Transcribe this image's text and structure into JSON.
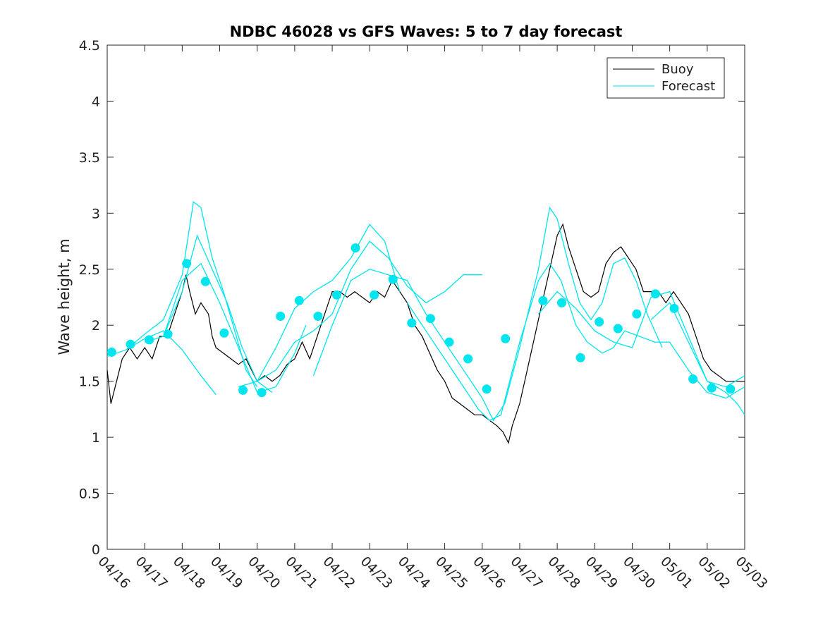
{
  "chart_data": {
    "type": "line",
    "title": "NDBC 46028 vs GFS Waves: 5 to 7 day forecast",
    "xlabel": "",
    "ylabel": "Wave height, m",
    "xlim": [
      "04/16",
      "05/03"
    ],
    "ylim": [
      0,
      4.5
    ],
    "x_ticks": [
      "04/16",
      "04/17",
      "04/18",
      "04/19",
      "04/20",
      "04/21",
      "04/22",
      "04/23",
      "04/24",
      "04/25",
      "04/26",
      "04/27",
      "04/28",
      "04/29",
      "04/30",
      "05/01",
      "05/02",
      "05/03"
    ],
    "y_ticks": [
      "0",
      "0.5",
      "1",
      "1.5",
      "2",
      "2.5",
      "3",
      "3.5",
      "4",
      "4.5"
    ],
    "grid": false,
    "legend_position": "top-right",
    "colors": {
      "buoy": "#000000",
      "forecast": "#00e5ee"
    },
    "series": [
      {
        "name": "Buoy",
        "type": "line",
        "points": [
          [
            0,
            1.6
          ],
          [
            0.1,
            1.3
          ],
          [
            0.25,
            1.5
          ],
          [
            0.4,
            1.7
          ],
          [
            0.6,
            1.8
          ],
          [
            0.8,
            1.7
          ],
          [
            1.0,
            1.8
          ],
          [
            1.2,
            1.7
          ],
          [
            1.4,
            1.9
          ],
          [
            1.6,
            1.9
          ],
          [
            1.8,
            2.1
          ],
          [
            2.0,
            2.3
          ],
          [
            2.1,
            2.45
          ],
          [
            2.2,
            2.3
          ],
          [
            2.35,
            2.1
          ],
          [
            2.5,
            2.2
          ],
          [
            2.7,
            2.1
          ],
          [
            2.8,
            1.9
          ],
          [
            2.9,
            1.8
          ],
          [
            3.1,
            1.75
          ],
          [
            3.3,
            1.7
          ],
          [
            3.5,
            1.65
          ],
          [
            3.7,
            1.7
          ],
          [
            3.85,
            1.6
          ],
          [
            4.0,
            1.5
          ],
          [
            4.2,
            1.55
          ],
          [
            4.4,
            1.5
          ],
          [
            4.6,
            1.55
          ],
          [
            4.8,
            1.65
          ],
          [
            5.0,
            1.7
          ],
          [
            5.2,
            1.85
          ],
          [
            5.4,
            1.7
          ],
          [
            5.6,
            1.9
          ],
          [
            5.8,
            2.1
          ],
          [
            6.0,
            2.3
          ],
          [
            6.2,
            2.3
          ],
          [
            6.4,
            2.25
          ],
          [
            6.6,
            2.3
          ],
          [
            6.8,
            2.25
          ],
          [
            7.0,
            2.2
          ],
          [
            7.2,
            2.3
          ],
          [
            7.4,
            2.25
          ],
          [
            7.6,
            2.4
          ],
          [
            7.8,
            2.3
          ],
          [
            8.0,
            2.2
          ],
          [
            8.2,
            2.0
          ],
          [
            8.4,
            1.9
          ],
          [
            8.6,
            1.75
          ],
          [
            8.8,
            1.6
          ],
          [
            9.0,
            1.5
          ],
          [
            9.2,
            1.35
          ],
          [
            9.4,
            1.3
          ],
          [
            9.6,
            1.25
          ],
          [
            9.8,
            1.2
          ],
          [
            10.0,
            1.2
          ],
          [
            10.2,
            1.15
          ],
          [
            10.4,
            1.1
          ],
          [
            10.55,
            1.05
          ],
          [
            10.7,
            0.95
          ],
          [
            10.8,
            1.1
          ],
          [
            11.0,
            1.3
          ],
          [
            11.2,
            1.6
          ],
          [
            11.4,
            1.9
          ],
          [
            11.6,
            2.2
          ],
          [
            11.8,
            2.5
          ],
          [
            12.0,
            2.8
          ],
          [
            12.15,
            2.9
          ],
          [
            12.3,
            2.7
          ],
          [
            12.5,
            2.5
          ],
          [
            12.7,
            2.3
          ],
          [
            12.9,
            2.25
          ],
          [
            13.1,
            2.3
          ],
          [
            13.3,
            2.55
          ],
          [
            13.5,
            2.65
          ],
          [
            13.7,
            2.7
          ],
          [
            13.9,
            2.6
          ],
          [
            14.1,
            2.5
          ],
          [
            14.3,
            2.3
          ],
          [
            14.5,
            2.3
          ],
          [
            14.7,
            2.3
          ],
          [
            14.9,
            2.2
          ],
          [
            15.1,
            2.3
          ],
          [
            15.3,
            2.2
          ],
          [
            15.5,
            2.1
          ],
          [
            15.7,
            1.9
          ],
          [
            15.9,
            1.7
          ],
          [
            16.1,
            1.6
          ],
          [
            16.3,
            1.55
          ],
          [
            16.5,
            1.5
          ],
          [
            16.7,
            1.5
          ],
          [
            16.9,
            1.5
          ],
          [
            17.0,
            1.5
          ]
        ]
      },
      {
        "name": "Forecast",
        "type": "line",
        "lines": [
          [
            [
              0,
              1.72
            ],
            [
              0.5,
              1.78
            ],
            [
              1.0,
              1.88
            ],
            [
              1.5,
              1.95
            ],
            [
              2.0,
              1.78
            ],
            [
              2.5,
              1.55
            ],
            [
              2.9,
              1.38
            ]
          ],
          [
            [
              0.5,
              1.78
            ],
            [
              1.0,
              1.92
            ],
            [
              1.5,
              2.05
            ],
            [
              2.0,
              2.45
            ],
            [
              2.3,
              3.1
            ],
            [
              2.5,
              3.05
            ],
            [
              2.8,
              2.6
            ],
            [
              3.1,
              2.3
            ],
            [
              3.4,
              1.95
            ],
            [
              3.7,
              1.6
            ],
            [
              4.0,
              1.45
            ]
          ],
          [
            [
              1.0,
              1.85
            ],
            [
              1.5,
              1.9
            ],
            [
              2.0,
              2.3
            ],
            [
              2.4,
              2.8
            ],
            [
              2.8,
              2.5
            ],
            [
              3.2,
              2.2
            ],
            [
              3.6,
              1.8
            ],
            [
              4.0,
              1.5
            ],
            [
              4.4,
              1.4
            ]
          ],
          [
            [
              1.5,
              1.9
            ],
            [
              2.0,
              2.4
            ],
            [
              2.5,
              2.55
            ],
            [
              3.0,
              2.2
            ],
            [
              3.5,
              1.8
            ],
            [
              4.0,
              1.4
            ],
            [
              4.5,
              1.45
            ],
            [
              5.0,
              1.75
            ],
            [
              5.3,
              2.0
            ]
          ],
          [
            [
              3.5,
              1.45
            ],
            [
              4.0,
              1.5
            ],
            [
              4.5,
              1.8
            ],
            [
              5.0,
              2.15
            ],
            [
              5.5,
              2.3
            ],
            [
              6.0,
              2.4
            ],
            [
              6.5,
              2.6
            ],
            [
              7.0,
              2.9
            ],
            [
              7.4,
              2.75
            ],
            [
              7.8,
              2.3
            ]
          ],
          [
            [
              4.0,
              1.5
            ],
            [
              4.5,
              1.6
            ],
            [
              5.0,
              1.85
            ],
            [
              5.5,
              1.95
            ],
            [
              6.0,
              2.1
            ],
            [
              6.5,
              2.5
            ],
            [
              7.0,
              2.75
            ],
            [
              7.5,
              2.6
            ],
            [
              8.0,
              2.35
            ],
            [
              8.5,
              2.2
            ],
            [
              9.0,
              2.3
            ],
            [
              9.5,
              2.45
            ],
            [
              10.0,
              2.45
            ]
          ],
          [
            [
              5.5,
              1.55
            ],
            [
              6.0,
              2.0
            ],
            [
              6.5,
              2.4
            ],
            [
              7.0,
              2.5
            ],
            [
              7.5,
              2.45
            ],
            [
              8.0,
              2.4
            ],
            [
              8.5,
              2.1
            ],
            [
              9.0,
              1.85
            ],
            [
              9.5,
              1.6
            ],
            [
              10.0,
              1.35
            ],
            [
              10.3,
              1.15
            ],
            [
              10.6,
              1.3
            ],
            [
              11.0,
              1.8
            ],
            [
              11.5,
              2.5
            ],
            [
              11.8,
              3.05
            ],
            [
              12.0,
              2.95
            ],
            [
              12.3,
              2.55
            ],
            [
              12.6,
              2.2
            ],
            [
              12.9,
              2.05
            ],
            [
              13.2,
              2.2
            ],
            [
              13.5,
              2.55
            ],
            [
              13.8,
              2.6
            ],
            [
              14.1,
              2.4
            ],
            [
              14.4,
              2.1
            ],
            [
              14.8,
              1.8
            ]
          ],
          [
            [
              8.0,
              2.2
            ],
            [
              8.5,
              1.95
            ],
            [
              9.0,
              1.7
            ],
            [
              9.5,
              1.45
            ],
            [
              9.9,
              1.25
            ],
            [
              10.2,
              1.15
            ],
            [
              10.5,
              1.2
            ],
            [
              11.0,
              1.85
            ],
            [
              11.5,
              2.4
            ],
            [
              11.8,
              2.55
            ],
            [
              12.1,
              2.4
            ],
            [
              12.5,
              2.0
            ],
            [
              12.8,
              1.85
            ],
            [
              13.2,
              1.75
            ],
            [
              13.5,
              1.8
            ],
            [
              13.8,
              1.95
            ],
            [
              14.2,
              1.9
            ],
            [
              14.6,
              1.85
            ],
            [
              15.0,
              1.85
            ],
            [
              15.5,
              1.6
            ],
            [
              16.0,
              1.4
            ],
            [
              16.5,
              1.35
            ],
            [
              17.0,
              1.45
            ]
          ],
          [
            [
              11.5,
              2.1
            ],
            [
              12.0,
              2.3
            ],
            [
              12.5,
              2.15
            ],
            [
              13.0,
              1.95
            ],
            [
              13.5,
              1.85
            ],
            [
              14.0,
              1.8
            ],
            [
              14.5,
              2.25
            ],
            [
              15.0,
              2.3
            ],
            [
              15.5,
              1.9
            ],
            [
              16.0,
              1.5
            ],
            [
              16.5,
              1.45
            ],
            [
              17.0,
              1.55
            ]
          ],
          [
            [
              14.5,
              2.05
            ],
            [
              15.0,
              2.2
            ],
            [
              15.5,
              1.85
            ],
            [
              16.0,
              1.5
            ],
            [
              16.5,
              1.4
            ],
            [
              16.8,
              1.3
            ],
            [
              17.0,
              1.2
            ]
          ]
        ]
      },
      {
        "name": "",
        "type": "scatter",
        "points": [
          [
            0.12,
            1.76
          ],
          [
            0.62,
            1.83
          ],
          [
            1.12,
            1.87
          ],
          [
            1.62,
            1.92
          ],
          [
            2.12,
            2.55
          ],
          [
            2.62,
            2.39
          ],
          [
            3.12,
            1.93
          ],
          [
            3.62,
            1.42
          ],
          [
            4.12,
            1.4
          ],
          [
            4.62,
            2.08
          ],
          [
            5.12,
            2.22
          ],
          [
            5.62,
            2.08
          ],
          [
            6.12,
            2.27
          ],
          [
            6.62,
            2.69
          ],
          [
            7.12,
            2.27
          ],
          [
            7.62,
            2.41
          ],
          [
            8.12,
            2.02
          ],
          [
            8.62,
            2.06
          ],
          [
            9.12,
            1.85
          ],
          [
            9.62,
            1.7
          ],
          [
            10.12,
            1.43
          ],
          [
            10.62,
            1.88
          ],
          [
            11.62,
            2.22
          ],
          [
            12.12,
            2.2
          ],
          [
            12.62,
            1.71
          ],
          [
            13.12,
            2.03
          ],
          [
            13.62,
            1.97
          ],
          [
            14.12,
            2.1
          ],
          [
            14.62,
            2.28
          ],
          [
            15.12,
            2.15
          ],
          [
            15.62,
            1.52
          ],
          [
            16.12,
            1.44
          ],
          [
            16.62,
            1.43
          ]
        ]
      }
    ]
  }
}
